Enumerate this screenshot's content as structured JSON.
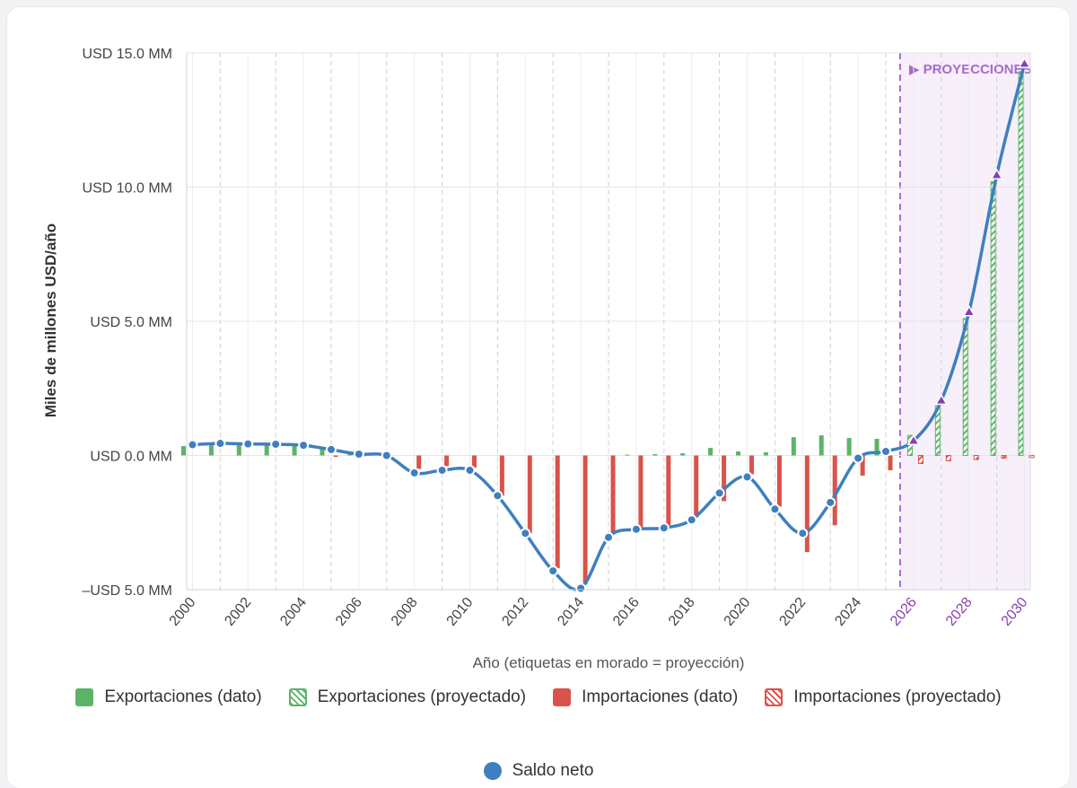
{
  "chart_data": {
    "type": "bar",
    "xlabel": "Año  (etiquetas en morado = proyección)",
    "ylabel": "Miles de millones USD/año",
    "ylim": [
      -5,
      15
    ],
    "yticks": [
      -5,
      0,
      5,
      10,
      15
    ],
    "ytick_labels": [
      "–USD 5.0 MM",
      "USD 0.0 MM",
      "USD 5.0 MM",
      "USD 10.0 MM",
      "USD 15.0 MM"
    ],
    "x": [
      2000,
      2001,
      2002,
      2003,
      2004,
      2005,
      2006,
      2007,
      2008,
      2009,
      2010,
      2011,
      2012,
      2013,
      2014,
      2015,
      2016,
      2017,
      2018,
      2019,
      2020,
      2021,
      2022,
      2023,
      2024,
      2025,
      2026,
      2027,
      2028,
      2029,
      2030
    ],
    "xtick_labels": [
      "2000",
      "2002",
      "2004",
      "2006",
      "2008",
      "2010",
      "2012",
      "2014",
      "2016",
      "2018",
      "2020",
      "2022",
      "2024",
      "2026",
      "2028",
      "2030"
    ],
    "projection_start": 2026,
    "projection_label": "▶ PROYECCIONES",
    "grid": true,
    "series": [
      {
        "name": "Exportaciones (dato)",
        "color": "#5cb466",
        "values": [
          0.35,
          0.4,
          0.4,
          0.38,
          0.35,
          0.25,
          0.06,
          0.0,
          0.0,
          0.0,
          0.0,
          0.0,
          0.0,
          0.0,
          0.0,
          0.0,
          0.03,
          0.05,
          0.08,
          0.28,
          0.15,
          0.12,
          0.68,
          0.75,
          0.65,
          0.62,
          null,
          null,
          null,
          null,
          null
        ]
      },
      {
        "name": "Exportaciones (proyectado)",
        "color": "#5cb466",
        "values": [
          null,
          null,
          null,
          null,
          null,
          null,
          null,
          null,
          null,
          null,
          null,
          null,
          null,
          null,
          null,
          null,
          null,
          null,
          null,
          null,
          null,
          null,
          null,
          null,
          null,
          null,
          0.75,
          1.85,
          5.1,
          10.2,
          14.3
        ]
      },
      {
        "name": "Importaciones (dato)",
        "color": "#d9534a",
        "values": [
          0.0,
          0.0,
          0.0,
          0.0,
          0.0,
          -0.05,
          -0.03,
          0.0,
          -0.5,
          -0.4,
          -0.45,
          -1.5,
          -2.9,
          -4.2,
          -4.8,
          -2.9,
          -2.7,
          -2.6,
          -2.3,
          -1.7,
          -0.7,
          -1.9,
          -3.6,
          -2.6,
          -0.75,
          -0.55,
          null,
          null,
          null,
          null,
          null
        ]
      },
      {
        "name": "Importaciones (proyectado)",
        "color": "#d9534a",
        "values": [
          null,
          null,
          null,
          null,
          null,
          null,
          null,
          null,
          null,
          null,
          null,
          null,
          null,
          null,
          null,
          null,
          null,
          null,
          null,
          null,
          null,
          null,
          null,
          null,
          null,
          null,
          -0.3,
          -0.2,
          -0.15,
          -0.1,
          -0.08
        ]
      },
      {
        "name": "Saldo neto",
        "color": "#3f7fbf",
        "values": [
          0.4,
          0.45,
          0.43,
          0.42,
          0.38,
          0.22,
          0.05,
          0.0,
          -0.65,
          -0.55,
          -0.55,
          -1.5,
          -2.9,
          -4.3,
          -4.95,
          -3.05,
          -2.75,
          -2.7,
          -2.4,
          -1.4,
          -0.8,
          -2.0,
          -2.9,
          -1.75,
          -0.1,
          0.15,
          0.55,
          2.05,
          5.35,
          10.45,
          14.6
        ]
      }
    ]
  }
}
